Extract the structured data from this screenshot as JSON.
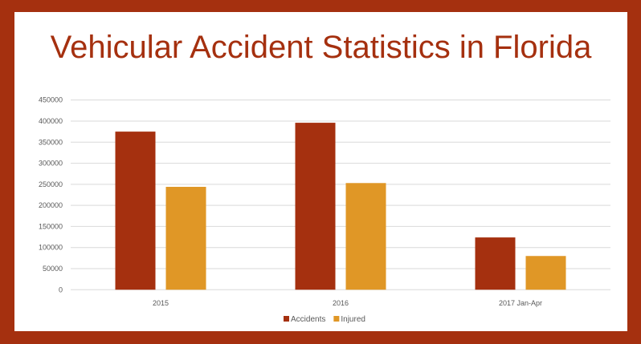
{
  "chart_data": {
    "type": "bar",
    "title": "Vehicular Accident Statistics in Florida",
    "categories": [
      "2015",
      "2016",
      "2017 Jan-Apr"
    ],
    "series": [
      {
        "name": "Accidents",
        "color": "#a5300f",
        "values": [
          375000,
          396000,
          124000
        ]
      },
      {
        "name": "Injured",
        "color": "#e09726",
        "values": [
          244000,
          253000,
          80000
        ]
      }
    ],
    "ylim": [
      0,
      450000
    ],
    "yticks": [
      0,
      50000,
      100000,
      150000,
      200000,
      250000,
      300000,
      350000,
      400000,
      450000
    ],
    "grid": true,
    "legend": "bottom"
  }
}
